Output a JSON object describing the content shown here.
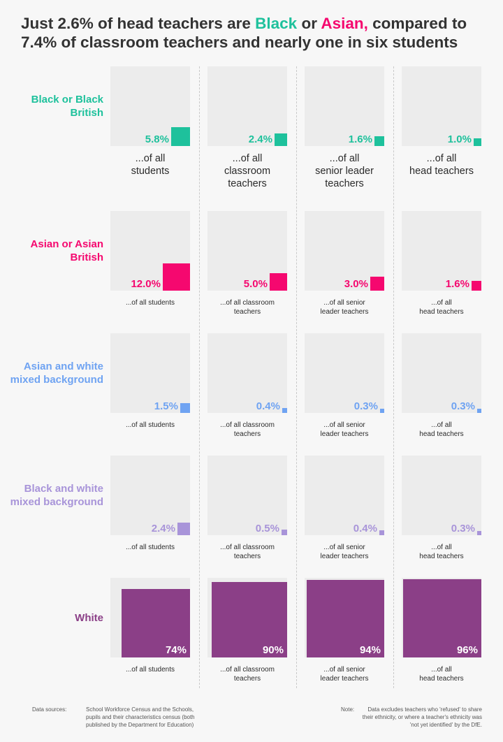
{
  "colors": {
    "black": "#1ec19c",
    "asian": "#f5086f",
    "asian_white": "#6fa3f2",
    "black_white": "#a894d9",
    "white": "#8b3f87"
  },
  "title": {
    "part1": "Just 2.6% of head teachers are ",
    "black_word": "Black",
    "part2": " or ",
    "asian_word": "Asian,",
    "part3": " compared to 7.4% of classroom teachers and nearly one in six students"
  },
  "chart_data": {
    "type": "square-area",
    "unit": "%",
    "categories": [
      "...of all students",
      "...of all classroom teachers",
      "...of all senior leader teachers",
      "...of all head teachers"
    ],
    "rows": [
      {
        "label": "Black or Black British",
        "color": "#1ec19c",
        "values": [
          5.8,
          2.4,
          1.6,
          1.0
        ],
        "value_labels": [
          "5.8%",
          "2.4%",
          "1.6%",
          "1.0%"
        ],
        "captions": [
          "...of all\nstudents",
          "...of all\nclassroom\nteachers",
          "...of all\nsenior leader\nteachers",
          "...of all\nhead teachers"
        ]
      },
      {
        "label": "Asian or Asian British",
        "color": "#f5086f",
        "values": [
          12.0,
          5.0,
          3.0,
          1.6
        ],
        "value_labels": [
          "12.0%",
          "5.0%",
          "3.0%",
          "1.6%"
        ],
        "captions": [
          "...of all students",
          "...of all classroom\nteachers",
          "...of all senior\nleader teachers",
          "...of all\nhead teachers"
        ]
      },
      {
        "label": "Asian and white mixed background",
        "color": "#6fa3f2",
        "values": [
          1.5,
          0.4,
          0.3,
          0.3
        ],
        "value_labels": [
          "1.5%",
          "0.4%",
          "0.3%",
          "0.3%"
        ],
        "captions": [
          "...of all students",
          "...of all classroom\nteachers",
          "...of all senior\nleader teachers",
          "...of all\nhead teachers"
        ]
      },
      {
        "label": "Black and white mixed background",
        "color": "#a894d9",
        "values": [
          2.4,
          0.5,
          0.4,
          0.3
        ],
        "value_labels": [
          "2.4%",
          "0.5%",
          "0.4%",
          "0.3%"
        ],
        "captions": [
          "...of all students",
          "...of all classroom\nteachers",
          "...of all senior\nleader teachers",
          "...of all\nhead teachers"
        ]
      },
      {
        "label": "White",
        "color": "#8b3f87",
        "values": [
          74,
          90,
          94,
          96
        ],
        "value_labels": [
          "74%",
          "90%",
          "94%",
          "96%"
        ],
        "captions": [
          "...of all students",
          "...of all classroom\nteachers",
          "...of all senior\nleader teachers",
          "...of all\nhead teachers"
        ]
      }
    ]
  },
  "footer": {
    "sources_label": "Data sources:",
    "sources_text": "School Workforce Census and the Schools, pupils and their characteristics census (both published by the Department for Education)",
    "note_label": "Note:",
    "note_text": "Data excludes teachers who 'refused' to share their ethnicity, or where a teacher's ethnicity was 'not yet identified' by the DfE."
  }
}
